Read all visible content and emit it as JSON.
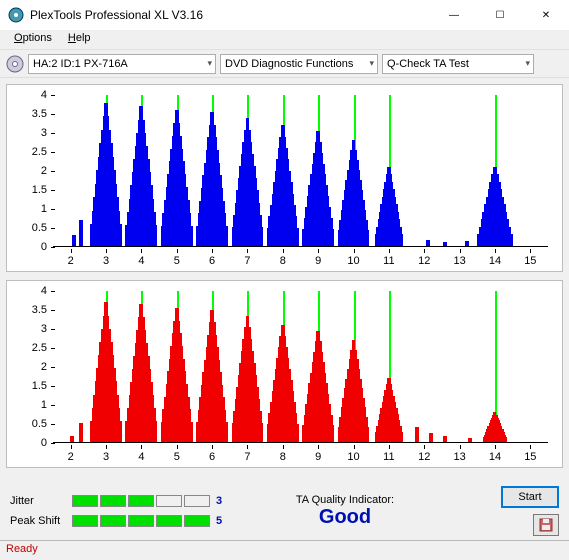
{
  "window": {
    "title": "PlexTools Professional XL V3.16",
    "min": "—",
    "max": "☐",
    "close": "✕"
  },
  "menu": {
    "options": "Options",
    "options_u": "O",
    "help": "Help",
    "help_u": "H"
  },
  "toolbar": {
    "device": "HA:2 ID:1   PX-716A",
    "func": "DVD Diagnostic Functions",
    "test": "Q-Check TA Test"
  },
  "chart_top": {
    "series_color": "#0000f0",
    "grid_color": "#00ff00",
    "background_color": "#ffffff",
    "ylim": [
      0,
      4
    ],
    "ytick_step": 0.5,
    "xlim": [
      1.5,
      15.5
    ],
    "xtick_step": 1,
    "yticks": [
      "0",
      "0.5",
      "1",
      "1.5",
      "2",
      "2.5",
      "3",
      "3.5",
      "4"
    ],
    "xticks": [
      "2",
      "3",
      "4",
      "5",
      "6",
      "7",
      "8",
      "9",
      "10",
      "11",
      "12",
      "13",
      "14",
      "15"
    ],
    "grid_x": [
      3,
      4,
      5,
      6,
      7,
      8,
      9,
      10,
      11,
      14
    ],
    "peaks": [
      {
        "x": 3,
        "h": 3.8,
        "w": 0.9
      },
      {
        "x": 4,
        "h": 3.7,
        "w": 0.9
      },
      {
        "x": 5,
        "h": 3.6,
        "w": 0.9
      },
      {
        "x": 6,
        "h": 3.55,
        "w": 0.9
      },
      {
        "x": 7,
        "h": 3.4,
        "w": 0.9
      },
      {
        "x": 8,
        "h": 3.2,
        "w": 0.9
      },
      {
        "x": 9,
        "h": 3.05,
        "w": 0.9
      },
      {
        "x": 10,
        "h": 2.8,
        "w": 0.9
      },
      {
        "x": 11,
        "h": 2.1,
        "w": 0.8
      },
      {
        "x": 14,
        "h": 2.1,
        "w": 1.0
      }
    ],
    "noise": [
      {
        "x": 2.1,
        "h": 0.3
      },
      {
        "x": 2.3,
        "h": 0.7
      },
      {
        "x": 12.1,
        "h": 0.15
      },
      {
        "x": 12.6,
        "h": 0.1
      },
      {
        "x": 13.2,
        "h": 0.12
      }
    ]
  },
  "chart_bot": {
    "series_color": "#f00000",
    "grid_color": "#00ff00",
    "background_color": "#ffffff",
    "ylim": [
      0,
      4
    ],
    "ytick_step": 0.5,
    "xlim": [
      1.5,
      15.5
    ],
    "xtick_step": 1,
    "yticks": [
      "0",
      "0.5",
      "1",
      "1.5",
      "2",
      "2.5",
      "3",
      "3.5",
      "4"
    ],
    "xticks": [
      "2",
      "3",
      "4",
      "5",
      "6",
      "7",
      "8",
      "9",
      "10",
      "11",
      "12",
      "13",
      "14",
      "15"
    ],
    "grid_x": [
      3,
      4,
      5,
      6,
      7,
      8,
      9,
      10,
      11,
      14
    ],
    "peaks": [
      {
        "x": 3,
        "h": 3.7,
        "w": 0.9
      },
      {
        "x": 4,
        "h": 3.65,
        "w": 0.9
      },
      {
        "x": 5,
        "h": 3.55,
        "w": 0.9
      },
      {
        "x": 6,
        "h": 3.5,
        "w": 0.9
      },
      {
        "x": 7,
        "h": 3.35,
        "w": 0.9
      },
      {
        "x": 8,
        "h": 3.1,
        "w": 0.9
      },
      {
        "x": 9,
        "h": 2.95,
        "w": 0.9
      },
      {
        "x": 10,
        "h": 2.7,
        "w": 0.9
      },
      {
        "x": 11,
        "h": 1.7,
        "w": 0.8
      },
      {
        "x": 14,
        "h": 0.8,
        "w": 0.7
      }
    ],
    "noise": [
      {
        "x": 2.05,
        "h": 0.15
      },
      {
        "x": 2.3,
        "h": 0.5
      },
      {
        "x": 11.8,
        "h": 0.4
      },
      {
        "x": 12.2,
        "h": 0.25
      },
      {
        "x": 12.6,
        "h": 0.15
      },
      {
        "x": 13.3,
        "h": 0.1
      }
    ]
  },
  "metrics": {
    "jitter_label": "Jitter",
    "jitter_val": "3",
    "jitter_blocks": 3,
    "total_blocks": 5,
    "peak_label": "Peak Shift",
    "peak_val": "5",
    "peak_blocks": 5
  },
  "taq": {
    "label": "TA Quality Indicator:",
    "value": "Good"
  },
  "buttons": {
    "start": "Start"
  },
  "status": "Ready"
}
